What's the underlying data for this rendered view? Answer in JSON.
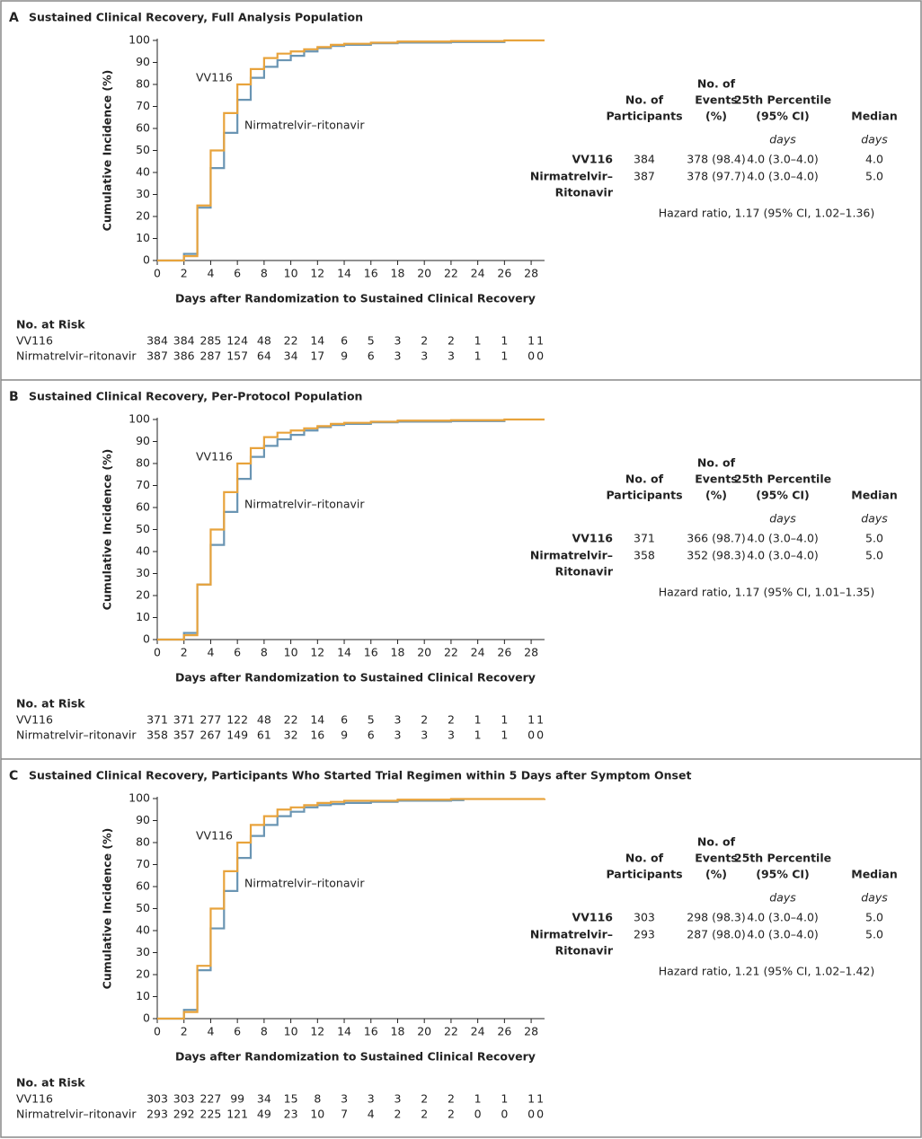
{
  "chart_data": [
    {
      "type": "line",
      "panel": "A",
      "title": "Sustained Clinical Recovery, Full Analysis Population",
      "xlabel": "Days after Randomization to Sustained Clinical Recovery",
      "ylabel": "Cumulative Incidence (%)",
      "xlim": [
        0,
        29
      ],
      "xticks": [
        0,
        2,
        4,
        6,
        8,
        10,
        12,
        14,
        16,
        18,
        20,
        22,
        24,
        26,
        28
      ],
      "ylim": [
        0,
        100
      ],
      "yticks": [
        0,
        10,
        20,
        30,
        40,
        50,
        60,
        70,
        80,
        90,
        100
      ],
      "step": true,
      "series": [
        {
          "name": "VV116",
          "color": "#e8a33c",
          "x": [
            0,
            2,
            3,
            4,
            5,
            6,
            7,
            8,
            9,
            10,
            11,
            12,
            13,
            14,
            16,
            18,
            22,
            26,
            29
          ],
          "values": [
            0,
            2,
            25,
            50,
            67,
            80,
            87,
            92,
            94,
            95,
            96,
            97,
            98,
            98.5,
            99,
            99.5,
            99.7,
            100,
            100
          ]
        },
        {
          "name": "Nirmatrelvir–ritonavir",
          "color": "#6a95b3",
          "x": [
            0,
            2,
            3,
            4,
            5,
            6,
            7,
            8,
            9,
            10,
            11,
            12,
            13,
            14,
            16,
            18,
            22,
            26
          ],
          "values": [
            0,
            3,
            24,
            42,
            58,
            73,
            83,
            88,
            91,
            93,
            95,
            96.5,
            97.5,
            98,
            98.7,
            99,
            99.3,
            100
          ]
        }
      ],
      "annotations": [
        "VV116",
        "Nirmatrelvir–ritonavir"
      ],
      "at_risk": {
        "label": "No. at Risk",
        "rows": [
          {
            "name": "VV116",
            "values": [
              384,
              384,
              285,
              124,
              48,
              22,
              14,
              6,
              5,
              3,
              2,
              2,
              1,
              1,
              1,
              1
            ]
          },
          {
            "name": "Nirmatrelvir–ritonavir",
            "values": [
              387,
              386,
              287,
              157,
              64,
              34,
              17,
              9,
              6,
              3,
              3,
              3,
              1,
              1,
              0,
              0
            ]
          }
        ]
      },
      "table": {
        "headers": [
          {
            "lines": [
              "No. of",
              "Participants"
            ]
          },
          {
            "lines": [
              "No. of",
              "Events",
              "(%)"
            ]
          },
          {
            "lines": [
              "25th Percentile",
              "(95% CI)"
            ],
            "unit": "days"
          },
          {
            "lines": [
              "Median"
            ],
            "unit": "days"
          }
        ],
        "rows": [
          {
            "label": [
              "VV116"
            ],
            "cells": [
              "384",
              "378 (98.4)",
              "4.0 (3.0–4.0)",
              "4.0"
            ]
          },
          {
            "label": [
              "Nirmatrelvir–",
              "Ritonavir"
            ],
            "cells": [
              "387",
              "378 (97.7)",
              "4.0 (3.0–4.0)",
              "5.0"
            ]
          }
        ],
        "note": "Hazard ratio, 1.17 (95% CI, 1.02–1.36)"
      }
    },
    {
      "type": "line",
      "panel": "B",
      "title": "Sustained Clinical Recovery, Per-Protocol Population",
      "xlabel": "Days after Randomization to Sustained Clinical Recovery",
      "ylabel": "Cumulative Incidence (%)",
      "xlim": [
        0,
        29
      ],
      "xticks": [
        0,
        2,
        4,
        6,
        8,
        10,
        12,
        14,
        16,
        18,
        20,
        22,
        24,
        26,
        28
      ],
      "ylim": [
        0,
        100
      ],
      "yticks": [
        0,
        10,
        20,
        30,
        40,
        50,
        60,
        70,
        80,
        90,
        100
      ],
      "step": true,
      "series": [
        {
          "name": "VV116",
          "color": "#e8a33c",
          "x": [
            0,
            2,
            3,
            4,
            5,
            6,
            7,
            8,
            9,
            10,
            11,
            12,
            13,
            14,
            16,
            18,
            22,
            26,
            29
          ],
          "values": [
            0,
            2,
            25,
            50,
            67,
            80,
            87,
            92,
            94,
            95,
            96,
            97,
            98,
            98.5,
            99,
            99.5,
            99.7,
            100,
            100
          ]
        },
        {
          "name": "Nirmatrelvir–ritonavir",
          "color": "#6a95b3",
          "x": [
            0,
            2,
            3,
            4,
            5,
            6,
            7,
            8,
            9,
            10,
            11,
            12,
            13,
            14,
            16,
            18,
            22,
            26
          ],
          "values": [
            0,
            3,
            25,
            43,
            58,
            73,
            83,
            88,
            91,
            93,
            95,
            96.5,
            97.5,
            98,
            98.7,
            99,
            99.3,
            100
          ]
        }
      ],
      "annotations": [
        "VV116",
        "Nirmatrelvir–ritonavir"
      ],
      "at_risk": {
        "label": "No. at Risk",
        "rows": [
          {
            "name": "VV116",
            "values": [
              371,
              371,
              277,
              122,
              48,
              22,
              14,
              6,
              5,
              3,
              2,
              2,
              1,
              1,
              1,
              1
            ]
          },
          {
            "name": "Nirmatrelvir–ritonavir",
            "values": [
              358,
              357,
              267,
              149,
              61,
              32,
              16,
              9,
              6,
              3,
              3,
              3,
              1,
              1,
              0,
              0
            ]
          }
        ]
      },
      "table": {
        "headers": [
          {
            "lines": [
              "No. of",
              "Participants"
            ]
          },
          {
            "lines": [
              "No. of",
              "Events",
              "(%)"
            ]
          },
          {
            "lines": [
              "25th Percentile",
              "(95% CI)"
            ],
            "unit": "days"
          },
          {
            "lines": [
              "Median"
            ],
            "unit": "days"
          }
        ],
        "rows": [
          {
            "label": [
              "VV116"
            ],
            "cells": [
              "371",
              "366 (98.7)",
              "4.0 (3.0–4.0)",
              "5.0"
            ]
          },
          {
            "label": [
              "Nirmatrelvir–",
              "Ritonavir"
            ],
            "cells": [
              "358",
              "352 (98.3)",
              "4.0 (3.0–4.0)",
              "5.0"
            ]
          }
        ],
        "note": "Hazard ratio, 1.17 (95% CI, 1.01–1.35)"
      }
    },
    {
      "type": "line",
      "panel": "C",
      "title": "Sustained Clinical Recovery, Participants Who Started Trial Regimen within 5 Days after Symptom Onset",
      "xlabel": "Days after Randomization to Sustained Clinical Recovery",
      "ylabel": "Cumulative Incidence (%)",
      "xlim": [
        0,
        29
      ],
      "xticks": [
        0,
        2,
        4,
        6,
        8,
        10,
        12,
        14,
        16,
        18,
        20,
        22,
        24,
        26,
        28
      ],
      "ylim": [
        0,
        100
      ],
      "yticks": [
        0,
        10,
        20,
        30,
        40,
        50,
        60,
        70,
        80,
        90,
        100
      ],
      "step": true,
      "series": [
        {
          "name": "VV116",
          "color": "#e8a33c",
          "x": [
            0,
            2,
            3,
            4,
            5,
            6,
            7,
            8,
            9,
            10,
            11,
            12,
            13,
            14,
            18,
            22,
            29
          ],
          "values": [
            0,
            3,
            24,
            50,
            67,
            80,
            88,
            92,
            95,
            96,
            97,
            98,
            98.5,
            99,
            99.5,
            99.8,
            100
          ]
        },
        {
          "name": "Nirmatrelvir–ritonavir",
          "color": "#6a95b3",
          "x": [
            0,
            2,
            3,
            4,
            5,
            6,
            7,
            8,
            9,
            10,
            11,
            12,
            13,
            14,
            16,
            18,
            22,
            23
          ],
          "values": [
            0,
            4,
            22,
            41,
            58,
            73,
            83,
            88,
            92,
            94,
            96,
            97,
            97.5,
            98,
            98.5,
            99,
            99.3,
            99.3
          ]
        }
      ],
      "annotations": [
        "VV116",
        "Nirmatrelvir–ritonavir"
      ],
      "at_risk": {
        "label": "No. at Risk",
        "rows": [
          {
            "name": "VV116",
            "values": [
              303,
              303,
              227,
              99,
              34,
              15,
              8,
              3,
              3,
              3,
              2,
              2,
              1,
              1,
              1,
              1
            ]
          },
          {
            "name": "Nirmatrelvir–ritonavir",
            "values": [
              293,
              292,
              225,
              121,
              49,
              23,
              10,
              7,
              4,
              2,
              2,
              2,
              0,
              0,
              0,
              0
            ]
          }
        ]
      },
      "table": {
        "headers": [
          {
            "lines": [
              "No. of",
              "Participants"
            ]
          },
          {
            "lines": [
              "No. of",
              "Events",
              "(%)"
            ]
          },
          {
            "lines": [
              "25th Percentile",
              "(95% CI)"
            ],
            "unit": "days"
          },
          {
            "lines": [
              "Median"
            ],
            "unit": "days"
          }
        ],
        "rows": [
          {
            "label": [
              "VV116"
            ],
            "cells": [
              "303",
              "298 (98.3)",
              "4.0 (3.0–4.0)",
              "5.0"
            ]
          },
          {
            "label": [
              "Nirmatrelvir–",
              "Ritonavir"
            ],
            "cells": [
              "293",
              "287 (98.0)",
              "4.0 (3.0–4.0)",
              "5.0"
            ]
          }
        ],
        "note": "Hazard ratio, 1.21 (95% CI, 1.02–1.42)"
      }
    }
  ]
}
